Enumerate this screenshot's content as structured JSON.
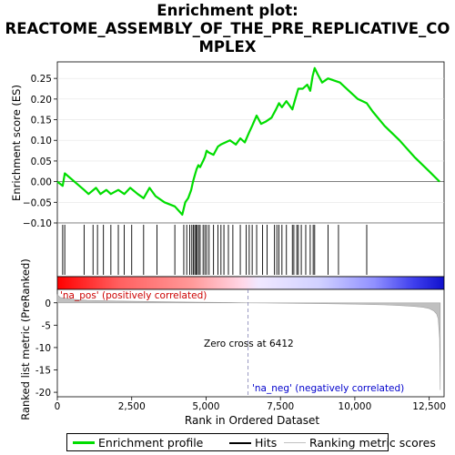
{
  "title_lines": [
    "Enrichment plot:",
    "REACTOME_ASSEMBLY_OF_THE_PRE_REPLICATIVE_CO",
    "MPLEX"
  ],
  "colors": {
    "enrichment_line": "#00dd00",
    "hits": "#000000",
    "metric_fill": "#c0c0c0",
    "zero_cross": "#8080b0",
    "label_pos": "#cc0000",
    "label_neg": "#0000cc"
  },
  "chart_data": [
    {
      "type": "line",
      "panel": "enrichment_profile",
      "ylabel": "Enrichment score (ES)",
      "ylim": [
        -0.1,
        0.29
      ],
      "yticks": [
        -0.1,
        -0.05,
        0.0,
        0.05,
        0.1,
        0.15,
        0.2,
        0.25
      ],
      "ytick_labels": [
        "−0.10",
        "−0.05",
        "0.00",
        "0.05",
        "0.10",
        "0.15",
        "0.20",
        "0.25"
      ],
      "xlim": [
        0,
        13000
      ],
      "series": [
        {
          "name": "Enrichment profile",
          "x": [
            0,
            180,
            250,
            900,
            1050,
            1300,
            1450,
            1650,
            1800,
            2050,
            2250,
            2450,
            2700,
            2900,
            3100,
            3300,
            3600,
            3950,
            4200,
            4300,
            4400,
            4500,
            4560,
            4620,
            4680,
            4740,
            4800,
            4900,
            4960,
            5020,
            5100,
            5250,
            5400,
            5500,
            5650,
            5800,
            6000,
            6150,
            6300,
            6450,
            6550,
            6700,
            6850,
            7000,
            7200,
            7350,
            7450,
            7550,
            7700,
            7900,
            8000,
            8100,
            8250,
            8400,
            8500,
            8580,
            8650,
            8750,
            8900,
            9100,
            9300,
            9500,
            9800,
            10100,
            10400,
            10600,
            11000,
            11500,
            12000,
            12500,
            12850
          ],
          "y": [
            0.0,
            -0.01,
            0.02,
            -0.02,
            -0.03,
            -0.015,
            -0.03,
            -0.02,
            -0.03,
            -0.02,
            -0.03,
            -0.015,
            -0.03,
            -0.04,
            -0.015,
            -0.035,
            -0.05,
            -0.06,
            -0.08,
            -0.05,
            -0.04,
            -0.02,
            0.0,
            0.015,
            0.03,
            0.04,
            0.035,
            0.05,
            0.06,
            0.075,
            0.07,
            0.065,
            0.085,
            0.09,
            0.095,
            0.1,
            0.09,
            0.105,
            0.095,
            0.12,
            0.135,
            0.16,
            0.14,
            0.145,
            0.155,
            0.175,
            0.19,
            0.18,
            0.195,
            0.175,
            0.2,
            0.225,
            0.225,
            0.235,
            0.22,
            0.255,
            0.275,
            0.26,
            0.24,
            0.25,
            0.245,
            0.24,
            0.22,
            0.2,
            0.19,
            0.17,
            0.135,
            0.1,
            0.06,
            0.025,
            0.0
          ]
        }
      ]
    },
    {
      "type": "hits",
      "panel": "hits",
      "positions": [
        180,
        250,
        900,
        1200,
        1350,
        1550,
        1800,
        2050,
        2250,
        2500,
        2900,
        3350,
        3950,
        4250,
        4350,
        4450,
        4520,
        4570,
        4620,
        4660,
        4700,
        4750,
        4800,
        4900,
        4960,
        5020,
        5100,
        5250,
        5400,
        5500,
        5600,
        5750,
        5900,
        6150,
        6350,
        6450,
        6550,
        6700,
        6900,
        7050,
        7300,
        7380,
        7450,
        7550,
        7700,
        7900,
        7950,
        8050,
        8100,
        8200,
        8350,
        8500,
        8600,
        8650,
        9100,
        9450,
        10400
      ]
    },
    {
      "type": "area",
      "panel": "ranked_metric",
      "ylabel": "Ranked list metric (PreRanked)",
      "xlabel": "Rank in Ordered Dataset",
      "ylim": [
        -21,
        3
      ],
      "yticks": [
        0,
        -5,
        -10,
        -15,
        -20
      ],
      "ytick_labels": [
        "0",
        "-5",
        "-10",
        "-15",
        "-20"
      ],
      "xlim": [
        0,
        13000
      ],
      "xticks": [
        0,
        2500,
        5000,
        7500,
        10000,
        12500
      ],
      "xtick_labels": [
        "0",
        "2,500",
        "5,000",
        "7,500",
        "10,000",
        "12,500"
      ],
      "x": [
        0,
        100,
        500,
        1000,
        2000,
        3000,
        4000,
        5000,
        6000,
        6412,
        7000,
        8000,
        9000,
        10000,
        11000,
        11500,
        12000,
        12300,
        12500,
        12650,
        12750,
        12800,
        12850,
        12870
      ],
      "y": [
        1.8,
        1.2,
        0.8,
        0.55,
        0.4,
        0.3,
        0.2,
        0.12,
        0.05,
        0.0,
        -0.05,
        -0.12,
        -0.2,
        -0.3,
        -0.45,
        -0.6,
        -0.8,
        -1.0,
        -1.3,
        -1.8,
        -2.5,
        -3.5,
        -8.0,
        -19.5
      ],
      "zero_cross_rank": 6412,
      "zero_cross_label": "Zero cross at 6412",
      "pos_label": "'na_pos' (positively correlated)",
      "neg_label": "'na_neg' (negatively correlated)"
    }
  ],
  "legend": {
    "items": [
      {
        "label": "Enrichment profile"
      },
      {
        "label": "Hits"
      },
      {
        "label": "Ranking metric scores"
      }
    ]
  }
}
